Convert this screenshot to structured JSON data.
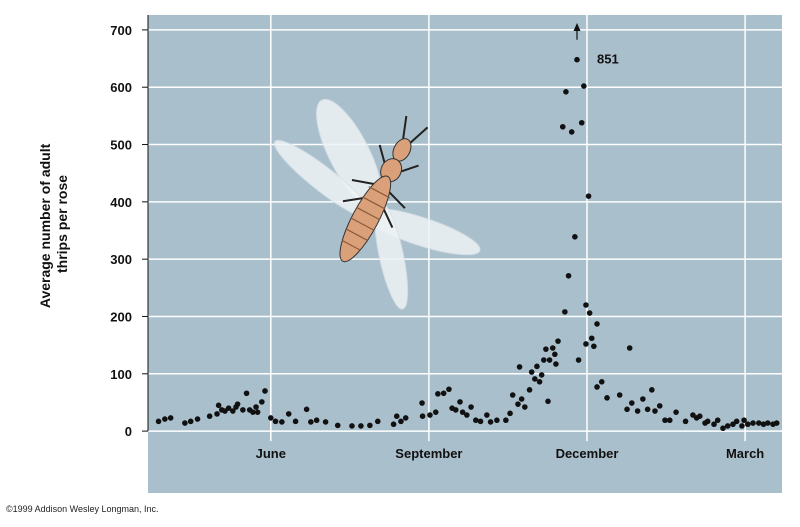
{
  "chart_data": {
    "type": "scatter",
    "ylabel": [
      "Average number of adult",
      "thrips per rose"
    ],
    "annotation": "851",
    "credit": "©1999 Addison Wesley Longman, Inc.",
    "xlim": [
      3.67,
      15.7
    ],
    "xticks": [
      {
        "value": 6,
        "label": "June"
      },
      {
        "value": 9,
        "label": "September"
      },
      {
        "value": 12,
        "label": "December"
      },
      {
        "value": 15,
        "label": "March"
      }
    ],
    "ylim": [
      -108,
      726
    ],
    "yticks": [
      0,
      100,
      200,
      300,
      400,
      500,
      600,
      700
    ],
    "grid": true,
    "series": [
      {
        "color": "#111111",
        "x": [
          3.87,
          3.99,
          4.1,
          4.37,
          4.48,
          4.61,
          4.84,
          4.98,
          5.01,
          5.07,
          5.13,
          5.2,
          5.28,
          5.34,
          5.37,
          5.47,
          5.54,
          5.6,
          5.66,
          5.72,
          5.75,
          5.83,
          5.89,
          6.0,
          6.09,
          6.21,
          6.34,
          6.47,
          6.68,
          6.76,
          6.87,
          7.04,
          7.27,
          7.54,
          7.71,
          7.88,
          8.03,
          8.33,
          8.39,
          8.47,
          8.56,
          8.87,
          8.88,
          9.02,
          9.13,
          9.17,
          9.28,
          9.38,
          9.44,
          9.51,
          9.59,
          9.64,
          9.72,
          9.8,
          9.89,
          9.98,
          10.1,
          10.17,
          10.29,
          10.46,
          10.54,
          10.59,
          10.69,
          10.72,
          10.76,
          10.82,
          10.91,
          10.95,
          11.01,
          11.05,
          11.1,
          11.14,
          11.18,
          11.22,
          11.26,
          11.29,
          11.35,
          11.39,
          11.41,
          11.45,
          11.54,
          11.58,
          11.6,
          11.65,
          11.71,
          11.77,
          11.81,
          11.84,
          11.9,
          11.94,
          11.98,
          11.98,
          12.03,
          12.05,
          12.09,
          12.13,
          12.19,
          12.19,
          12.28,
          12.38,
          12.62,
          12.76,
          12.81,
          12.85,
          12.96,
          13.06,
          13.15,
          13.23,
          13.29,
          13.38,
          13.48,
          13.57,
          13.69,
          13.87,
          14.01,
          14.08,
          14.14,
          14.24,
          14.29,
          14.41,
          14.48,
          14.58,
          14.67,
          14.77,
          14.84,
          14.94,
          14.98,
          15.05,
          15.15,
          15.26,
          15.35,
          15.43,
          15.53,
          15.6
        ],
        "values": [
          17,
          21,
          23,
          14,
          17,
          21,
          26,
          30,
          45,
          37,
          35,
          40,
          35,
          42,
          47,
          37,
          66,
          37,
          33,
          42,
          33,
          51,
          70,
          23,
          17,
          16,
          30,
          17,
          38,
          16,
          19,
          16,
          10,
          9,
          9,
          10,
          17,
          12,
          26,
          17,
          23,
          49,
          26,
          28,
          33,
          65,
          66,
          73,
          40,
          37,
          51,
          33,
          28,
          42,
          19,
          17,
          28,
          16,
          19,
          19,
          31,
          63,
          47,
          112,
          56,
          42,
          72,
          103,
          91,
          113,
          86,
          98,
          124,
          143,
          52,
          124,
          145,
          134,
          117,
          157,
          531,
          208,
          592,
          271,
          522,
          339,
          648,
          124,
          538,
          602,
          220,
          152,
          410,
          206,
          162,
          148,
          187,
          77,
          86,
          58,
          63,
          38,
          145,
          49,
          35,
          56,
          38,
          72,
          35,
          44,
          19,
          19,
          33,
          17,
          28,
          23,
          26,
          14,
          17,
          12,
          19,
          5,
          9,
          12,
          17,
          9,
          19,
          12,
          14,
          14,
          12,
          14,
          12,
          14
        ]
      }
    ]
  }
}
